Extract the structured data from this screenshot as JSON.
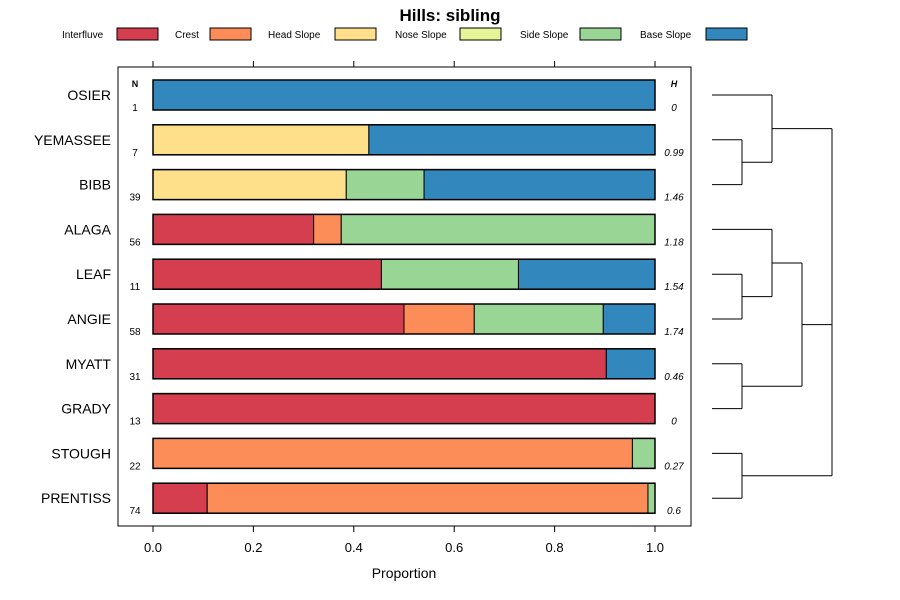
{
  "chart_data": {
    "type": "bar",
    "stacked": true,
    "orientation": "horizontal",
    "title": "Hills: sibling",
    "xlabel": "Proportion",
    "xlim": [
      0,
      1
    ],
    "x_ticks": [
      "0.0",
      "0.2",
      "0.4",
      "0.6",
      "0.8",
      "1.0"
    ],
    "n_header": "N",
    "h_header": "H",
    "legend": [
      {
        "name": "Interfluve",
        "color": "#D53E4F"
      },
      {
        "name": "Crest",
        "color": "#FC8D59"
      },
      {
        "name": "Head Slope",
        "color": "#FEE08B"
      },
      {
        "name": "Nose Slope",
        "color": "#E6F598"
      },
      {
        "name": "Side Slope",
        "color": "#99D594"
      },
      {
        "name": "Base Slope",
        "color": "#3288BD"
      }
    ],
    "rows": [
      {
        "label": "OSIER",
        "n": "1",
        "h": "0",
        "values": [
          0,
          0,
          0,
          0,
          0,
          1.0
        ]
      },
      {
        "label": "YEMASSEE",
        "n": "7",
        "h": "0.99",
        "values": [
          0,
          0,
          0.43,
          0,
          0,
          0.57
        ]
      },
      {
        "label": "BIBB",
        "n": "39",
        "h": "1.46",
        "values": [
          0,
          0,
          0.385,
          0,
          0.155,
          0.46
        ]
      },
      {
        "label": "ALAGA",
        "n": "56",
        "h": "1.18",
        "values": [
          0.32,
          0.055,
          0,
          0,
          0.625,
          0
        ]
      },
      {
        "label": "LEAF",
        "n": "11",
        "h": "1.54",
        "values": [
          0.455,
          0,
          0,
          0,
          0.273,
          0.272
        ]
      },
      {
        "label": "ANGIE",
        "n": "58",
        "h": "1.74",
        "values": [
          0.5,
          0.14,
          0,
          0,
          0.257,
          0.103
        ]
      },
      {
        "label": "MYATT",
        "n": "31",
        "h": "0.46",
        "values": [
          0.903,
          0,
          0,
          0,
          0,
          0.097
        ]
      },
      {
        "label": "GRADY",
        "n": "13",
        "h": "0",
        "values": [
          1.0,
          0,
          0,
          0,
          0,
          0
        ]
      },
      {
        "label": "STOUGH",
        "n": "22",
        "h": "0.27",
        "values": [
          0,
          0.955,
          0,
          0,
          0.045,
          0
        ]
      },
      {
        "label": "PRENTISS",
        "n": "74",
        "h": "0.6",
        "values": [
          0.108,
          0.878,
          0,
          0,
          0.014,
          0
        ]
      }
    ],
    "dendrogram_groups": [
      [
        "OSIER",
        [
          "YEMASSEE",
          "BIBB"
        ]
      ],
      [
        [
          "ALAGA",
          [
            "LEAF",
            "ANGIE"
          ]
        ],
        [
          "MYATT",
          "GRADY"
        ]
      ],
      [
        "STOUGH",
        "PRENTISS"
      ]
    ]
  }
}
